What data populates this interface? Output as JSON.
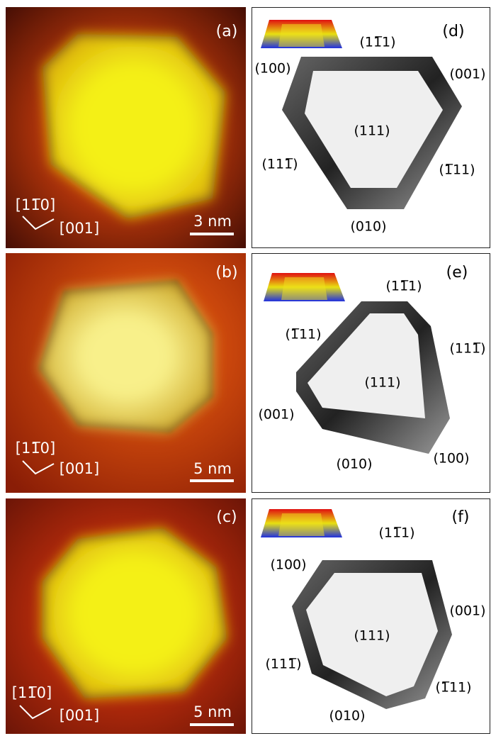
{
  "stm_panels": [
    {
      "label": "(a)",
      "direction_1": "[11̅0]",
      "direction_2": "[001]",
      "scale_bar": "3 nm"
    },
    {
      "label": "(b)",
      "direction_1": "[11̅0]",
      "direction_2": "[001]",
      "scale_bar": "5 nm"
    },
    {
      "label": "(c)",
      "direction_1": "[11̅0]",
      "direction_2": "[001]",
      "scale_bar": "5 nm"
    }
  ],
  "model_panels": [
    {
      "label": "(d)",
      "facets": [
        "(11̅1)",
        "(100)",
        "(001)",
        "(111)",
        "(111̅)",
        "(1̅11)",
        "(010)"
      ]
    },
    {
      "label": "(e)",
      "facets": [
        "(11̅1)",
        "(1̅11)",
        "(111̅)",
        "(111)",
        "(001)",
        "(010)",
        "(100)"
      ]
    },
    {
      "label": "(f)",
      "facets": [
        "(11̅1)",
        "(100)",
        "(001)",
        "(111)",
        "(111̅)",
        "(1̅11)",
        "(010)"
      ]
    }
  ]
}
